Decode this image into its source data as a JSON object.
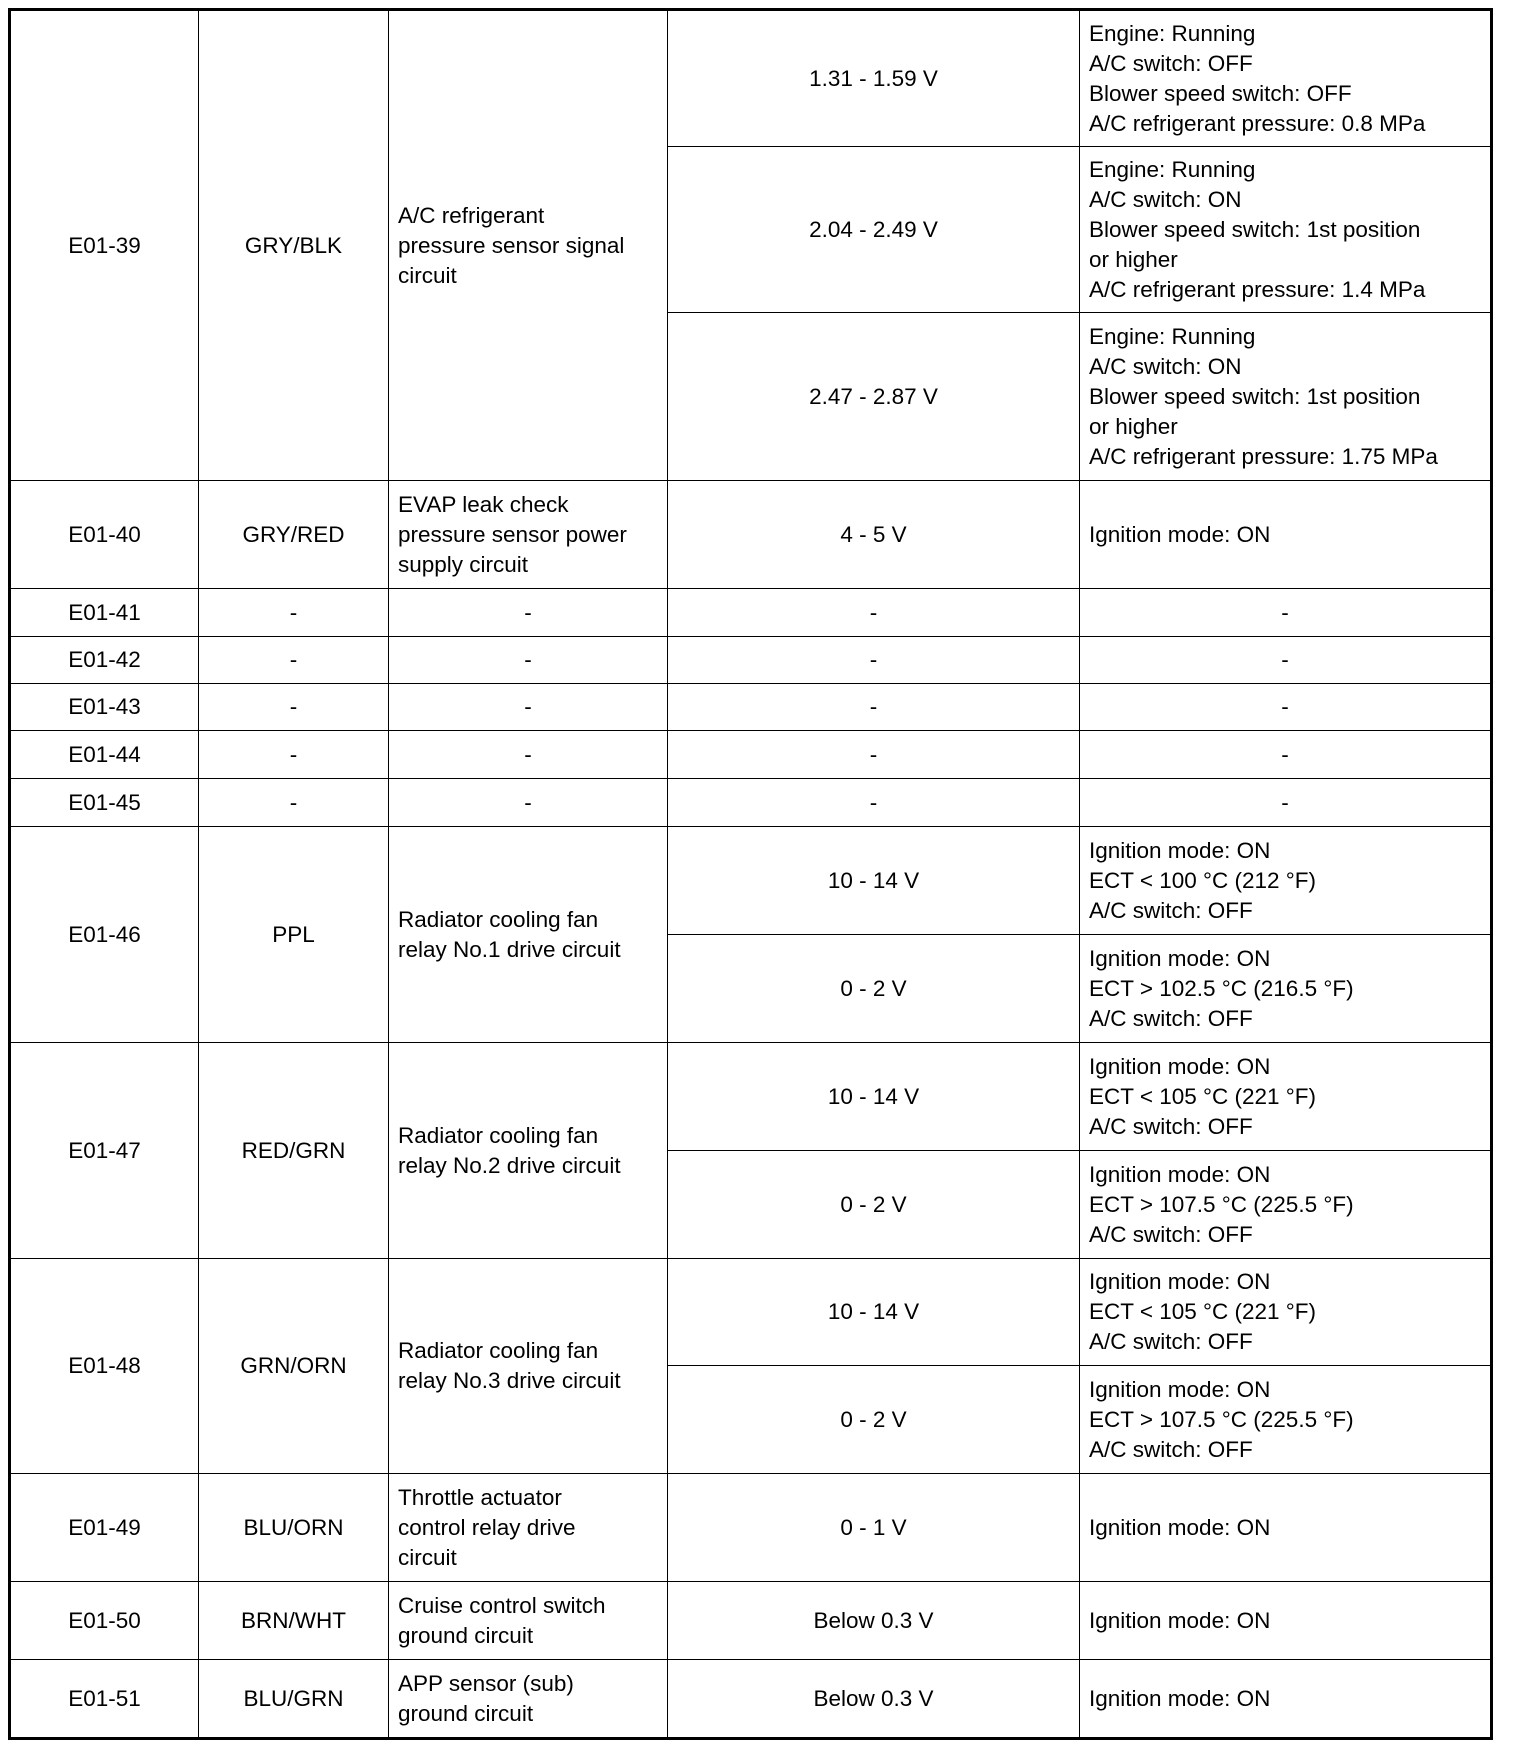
{
  "rows": [
    {
      "pin": "E01-39",
      "wire": "GRY/BLK",
      "circuit": "A/C refrigerant\npressure sensor signal\ncircuit",
      "conditions": [
        {
          "voltage": "1.31 - 1.59 V",
          "condition": "Engine: Running\nA/C switch: OFF\nBlower speed switch: OFF\nA/C refrigerant pressure: 0.8 MPa"
        },
        {
          "voltage": "2.04 - 2.49 V",
          "condition": "Engine: Running\nA/C switch: ON\nBlower speed switch: 1st position\nor higher\nA/C refrigerant pressure: 1.4 MPa"
        },
        {
          "voltage": "2.47 - 2.87 V",
          "condition": "Engine: Running\nA/C switch: ON\nBlower speed switch: 1st position\nor higher\nA/C refrigerant pressure: 1.75 MPa"
        }
      ]
    },
    {
      "pin": "E01-40",
      "wire": "GRY/RED",
      "circuit": "EVAP leak check\npressure sensor power\nsupply circuit",
      "conditions": [
        {
          "voltage": "4 - 5 V",
          "condition": "Ignition mode: ON"
        }
      ]
    },
    {
      "pin": "E01-41",
      "wire": "-",
      "circuit": "-",
      "conditions": [
        {
          "voltage": "-",
          "condition": "-"
        }
      ]
    },
    {
      "pin": "E01-42",
      "wire": "-",
      "circuit": "-",
      "conditions": [
        {
          "voltage": "-",
          "condition": "-"
        }
      ]
    },
    {
      "pin": "E01-43",
      "wire": "-",
      "circuit": "-",
      "conditions": [
        {
          "voltage": "-",
          "condition": "-"
        }
      ]
    },
    {
      "pin": "E01-44",
      "wire": "-",
      "circuit": "-",
      "conditions": [
        {
          "voltage": "-",
          "condition": "-"
        }
      ]
    },
    {
      "pin": "E01-45",
      "wire": "-",
      "circuit": "-",
      "conditions": [
        {
          "voltage": "-",
          "condition": "-"
        }
      ]
    },
    {
      "pin": "E01-46",
      "wire": "PPL",
      "circuit": "Radiator cooling fan\nrelay No.1 drive circuit",
      "conditions": [
        {
          "voltage": "10 - 14 V",
          "condition": "Ignition mode: ON\nECT < 100 °C (212 °F)\nA/C switch: OFF"
        },
        {
          "voltage": "0 - 2 V",
          "condition": "Ignition mode: ON\nECT > 102.5 °C (216.5 °F)\nA/C switch: OFF"
        }
      ]
    },
    {
      "pin": "E01-47",
      "wire": "RED/GRN",
      "circuit": "Radiator cooling fan\nrelay No.2 drive circuit",
      "conditions": [
        {
          "voltage": "10 - 14 V",
          "condition": "Ignition mode: ON\nECT < 105 °C (221 °F)\nA/C switch: OFF"
        },
        {
          "voltage": "0 - 2 V",
          "condition": "Ignition mode: ON\nECT > 107.5 °C (225.5 °F)\nA/C switch: OFF"
        }
      ]
    },
    {
      "pin": "E01-48",
      "wire": "GRN/ORN",
      "circuit": "Radiator cooling fan\nrelay No.3 drive circuit",
      "conditions": [
        {
          "voltage": "10 - 14 V",
          "condition": "Ignition mode: ON\nECT < 105 °C (221 °F)\nA/C switch: OFF"
        },
        {
          "voltage": "0 - 2 V",
          "condition": "Ignition mode: ON\nECT > 107.5 °C (225.5 °F)\nA/C switch: OFF"
        }
      ]
    },
    {
      "pin": "E01-49",
      "wire": "BLU/ORN",
      "circuit": "Throttle actuator\ncontrol relay drive\ncircuit",
      "conditions": [
        {
          "voltage": "0 - 1 V",
          "condition": "Ignition mode: ON"
        }
      ]
    },
    {
      "pin": "E01-50",
      "wire": "BRN/WHT",
      "circuit": "Cruise control switch\nground circuit",
      "conditions": [
        {
          "voltage": "Below 0.3 V",
          "condition": "Ignition mode: ON"
        }
      ]
    },
    {
      "pin": "E01-51",
      "wire": "BLU/GRN",
      "circuit": "APP sensor (sub)\nground circuit",
      "conditions": [
        {
          "voltage": "Below 0.3 V",
          "condition": "Ignition mode: ON"
        }
      ]
    }
  ]
}
